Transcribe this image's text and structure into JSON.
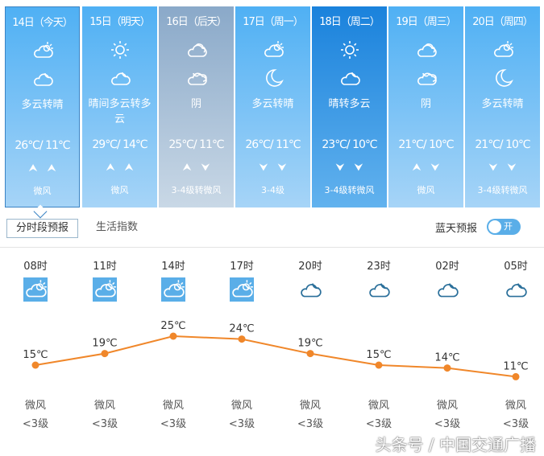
{
  "days": [
    {
      "date": "14日（今天）",
      "day_icon": "cloud-sun-icon",
      "night_icon": "cloud-moon-icon",
      "desc": "多云转晴",
      "temp": "26℃/ 11℃",
      "arrows": [
        "⮝",
        "⮝"
      ],
      "wind": "微风",
      "style": "normal",
      "selected": true
    },
    {
      "date": "15日（明天）",
      "day_icon": "sun-icon",
      "night_icon": "cloud-moon-icon",
      "desc": "晴间多云转多云",
      "temp": "29℃/ 14℃",
      "arrows": [
        "⮝",
        "⮝"
      ],
      "wind": "微风",
      "style": "normal"
    },
    {
      "date": "16日（后天）",
      "day_icon": "overcast-icon",
      "night_icon": "overcast-night-icon",
      "desc": "阴",
      "temp": "25℃/ 11℃",
      "arrows": [
        "⮝",
        "⮟"
      ],
      "wind": "3-4级转微风",
      "style": "gray"
    },
    {
      "date": "17日（周一）",
      "day_icon": "cloud-sun-icon",
      "night_icon": "moon-icon",
      "desc": "多云转晴",
      "temp": "26℃/ 11℃",
      "arrows": [
        "⮟",
        "⮟"
      ],
      "wind": "3-4级",
      "style": "normal"
    },
    {
      "date": "18日（周二）",
      "day_icon": "sun-icon",
      "night_icon": "cloud-moon-icon",
      "desc": "晴转多云",
      "temp": "23℃/ 10℃",
      "arrows": [
        "⮟",
        "⮟"
      ],
      "wind": "3-4级转微风",
      "style": "active"
    },
    {
      "date": "19日（周三）",
      "day_icon": "overcast-icon",
      "night_icon": "overcast-night-icon",
      "desc": "阴",
      "temp": "21℃/ 10℃",
      "arrows": [
        "⮝",
        "⮟"
      ],
      "wind": "微风",
      "style": "normal"
    },
    {
      "date": "20日（周四）",
      "day_icon": "cloud-sun-icon",
      "night_icon": "moon-icon",
      "desc": "多云转晴",
      "temp": "21℃/ 10℃",
      "arrows": [
        "⮟",
        "⮟"
      ],
      "wind": "3-4级转微风",
      "style": "normal"
    }
  ],
  "tabs": {
    "hourly": "分时段预报",
    "life": "生活指数"
  },
  "blue_sky": {
    "label": "蓝天预报",
    "toggle": "开",
    "on": true
  },
  "hourly": [
    {
      "time": "08时",
      "icon": "cloud-sun-icon",
      "temp": "15℃",
      "wind": "微风",
      "level": "<3级"
    },
    {
      "time": "11时",
      "icon": "cloud-sun-icon",
      "temp": "19℃",
      "wind": "微风",
      "level": "<3级"
    },
    {
      "time": "14时",
      "icon": "cloud-sun-icon",
      "temp": "25℃",
      "wind": "微风",
      "level": "<3级"
    },
    {
      "time": "17时",
      "icon": "cloud-sun-icon",
      "temp": "24℃",
      "wind": "微风",
      "level": "<3级"
    },
    {
      "time": "20时",
      "icon": "cloud-moon-icon",
      "temp": "19℃",
      "wind": "微风",
      "level": "<3级"
    },
    {
      "time": "23时",
      "icon": "cloud-moon-icon",
      "temp": "15℃",
      "wind": "微风",
      "level": "<3级"
    },
    {
      "time": "02时",
      "icon": "cloud-moon-icon",
      "temp": "14℃",
      "wind": "微风",
      "level": "<3级"
    },
    {
      "time": "05时",
      "icon": "cloud-moon-icon",
      "temp": "11℃",
      "wind": "微风",
      "level": "<3级"
    }
  ],
  "chart_data": {
    "type": "line",
    "categories": [
      "08时",
      "11时",
      "14时",
      "17时",
      "20时",
      "23时",
      "02时",
      "05时"
    ],
    "values": [
      15,
      19,
      25,
      24,
      19,
      15,
      14,
      11
    ],
    "unit": "℃",
    "color": "#f0872a",
    "grid": false
  },
  "colors": {
    "card": "#4fb0f4",
    "card_gray": "#8aa9c9",
    "card_active": "#1a82dc",
    "line": "#f0872a",
    "toggle": "#5aaee8"
  },
  "watermark": "头条号 / 中国交通广播"
}
